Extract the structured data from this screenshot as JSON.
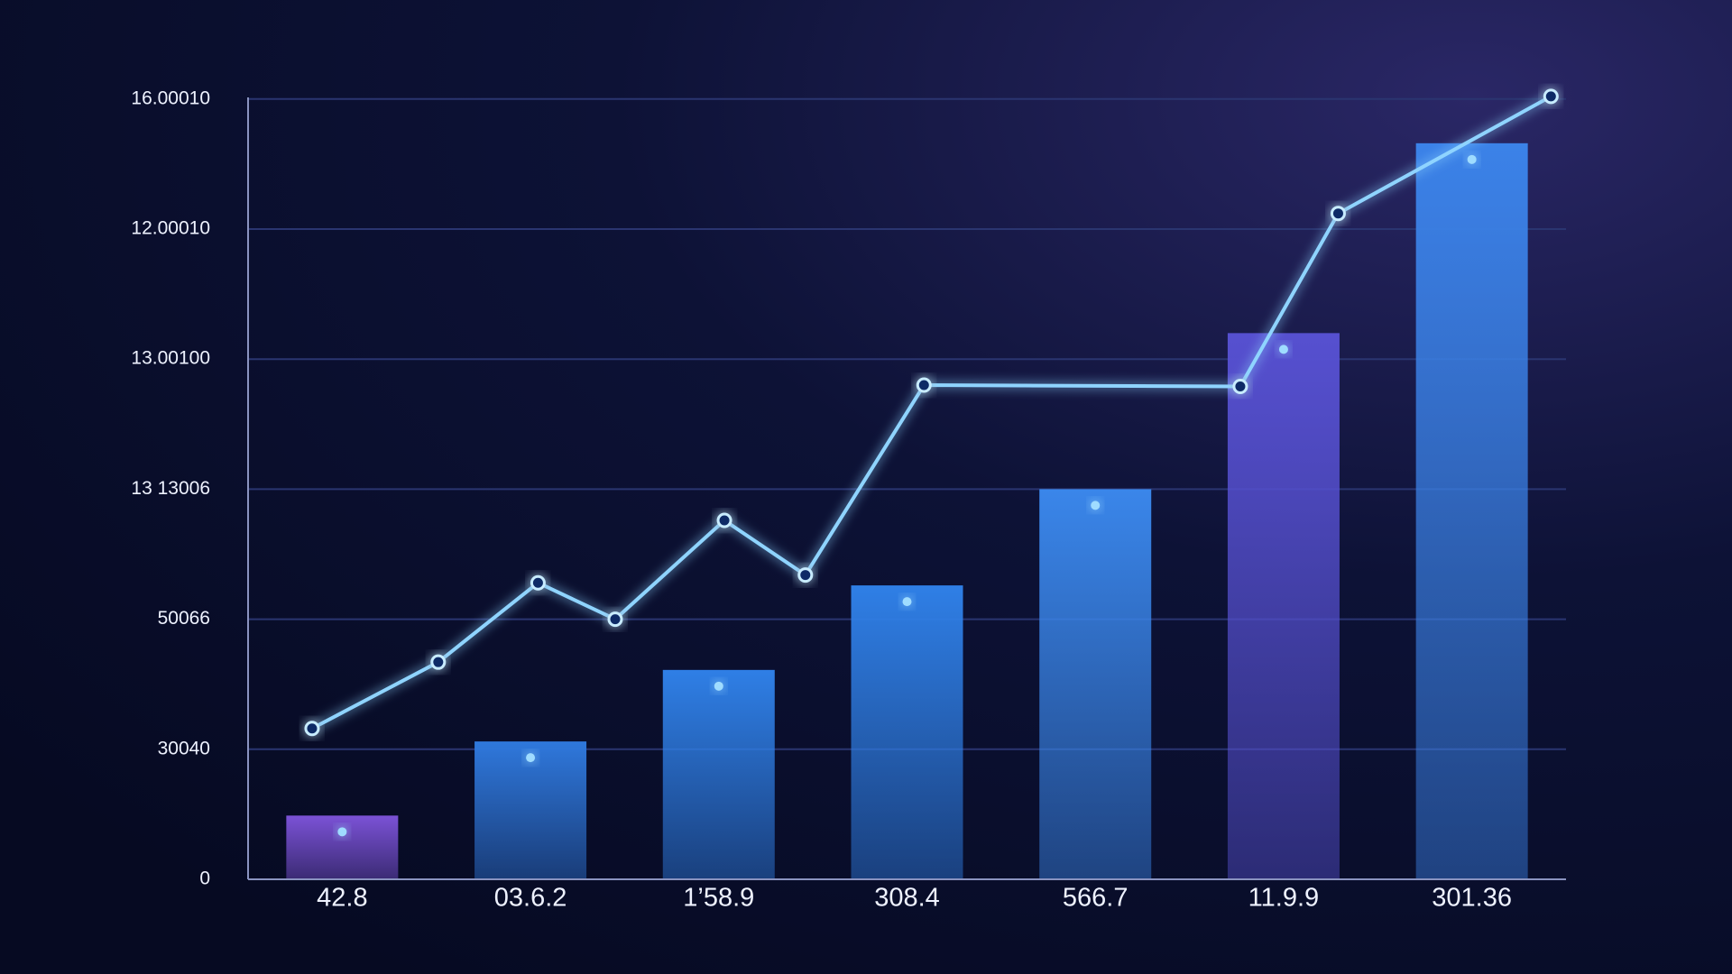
{
  "chart_data": {
    "type": "bar",
    "categories": [
      "42.8",
      "03.6.2",
      "1’58.9",
      "308.4",
      "566.7",
      "11.9.9",
      "301.36"
    ],
    "ylim": [
      0,
      6.2
    ],
    "yticks": [
      0,
      {
        "value": 1,
        "label": "30040"
      },
      {
        "value": 2,
        "label": "50066"
      },
      {
        "value": 3,
        "label": "13 13006"
      },
      {
        "value": 4,
        "label": "13.00100"
      },
      {
        "value": 5,
        "label": "12.00010"
      },
      {
        "value": 6,
        "label": "16.00010"
      }
    ],
    "grid": true,
    "series": [
      {
        "type": "bar",
        "values": [
          0.49,
          1.06,
          1.61,
          2.26,
          3.0,
          4.2,
          5.66
        ],
        "colors": [
          "#7b52d6",
          "#2f78dc",
          "#2f7fe6",
          "#2f7fe6",
          "#3a86ea",
          "#5650d0",
          "#3b82e8"
        ]
      },
      {
        "type": "line",
        "color": "#8fd4ff",
        "x": [
          -0.16,
          0.51,
          1.04,
          1.45,
          2.03,
          2.46,
          3.09,
          4.77,
          5.29,
          6.42
        ],
        "values": [
          1.16,
          1.67,
          2.28,
          2.0,
          2.76,
          2.34,
          3.8,
          3.79,
          5.12,
          6.02
        ]
      }
    ]
  }
}
